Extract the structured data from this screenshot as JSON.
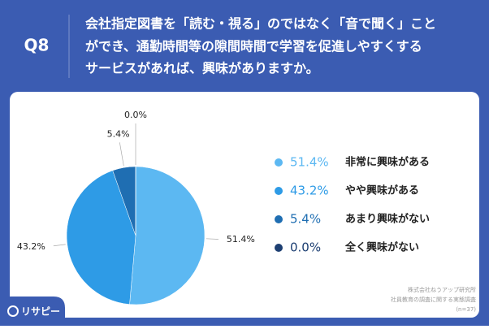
{
  "header": {
    "question_number": "Q8",
    "question_lines": [
      "会社指定図書を「読む・視る」のではなく「音で聞く」こと",
      "ができ、通勤時間等の隙間時間で学習を促進しやすくする",
      "サービスがあれば、興味がありますか。"
    ]
  },
  "chart_data": {
    "type": "pie",
    "categories": [
      "非常に興味がある",
      "やや興味がある",
      "あまり興味がない",
      "全く興味がない"
    ],
    "values": [
      51.4,
      43.2,
      5.4,
      0.0
    ],
    "value_labels": [
      "51.4%",
      "43.2%",
      "5.4%",
      "0.0%"
    ],
    "colors": [
      "#5cb8f2",
      "#2e9be6",
      "#1f6eb2",
      "#1d3f72"
    ]
  },
  "source": [
    "株式会社ねうアップ研究所",
    "社員教育の調査に関する実態調査",
    "(n=37)"
  ],
  "brand": "リサピー"
}
